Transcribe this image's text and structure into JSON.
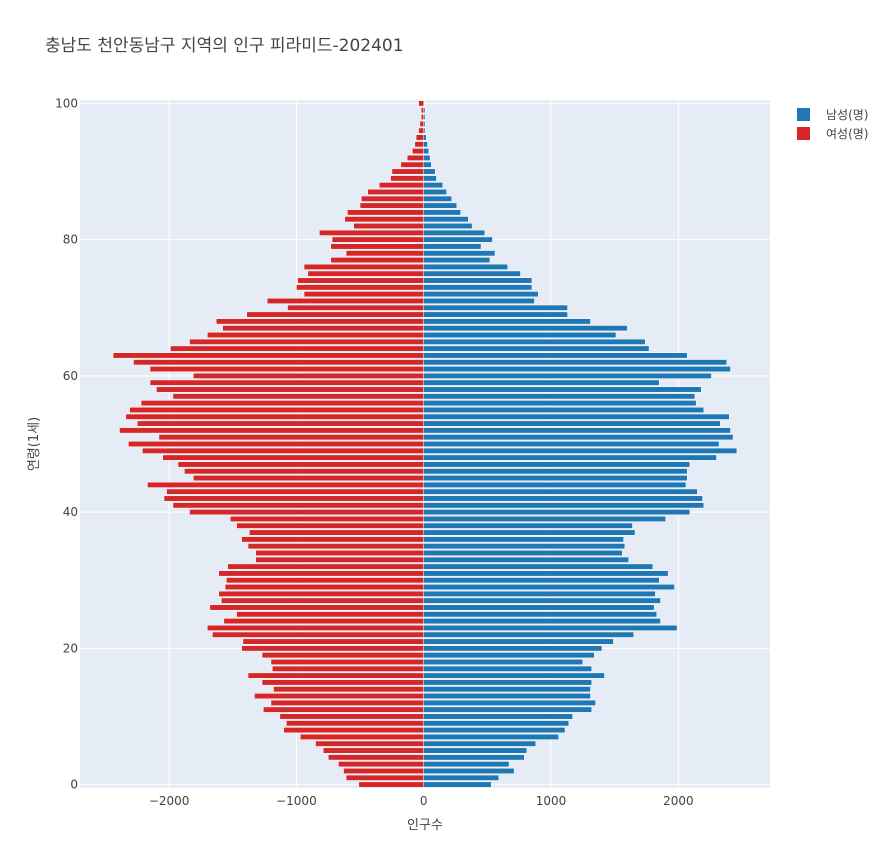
{
  "chart_data": {
    "type": "bar",
    "orientation": "horizontal",
    "barmode": "overlay",
    "title": "충남도 천안동남구 지역의 인구 피라미드-202401",
    "xlabel": "인구수",
    "ylabel": "연령(1세)",
    "xlim": [
      -2700,
      2720
    ],
    "ylim": [
      -0.5,
      100.5
    ],
    "xticks": [
      -2000,
      -1000,
      0,
      1000,
      2000
    ],
    "xtick_labels": [
      "−2000",
      "−1000",
      "0",
      "1000",
      "2000"
    ],
    "yticks": [
      0,
      20,
      40,
      60,
      80,
      100
    ],
    "ytick_labels": [
      "0",
      "20",
      "40",
      "60",
      "80",
      "100"
    ],
    "grid": true,
    "legend_position": "top-right",
    "background": "#e5ecf6",
    "series": [
      {
        "name": "남성(명)",
        "color": "#1f77b4",
        "ages": [
          0,
          1,
          2,
          3,
          4,
          5,
          6,
          7,
          8,
          9,
          10,
          11,
          12,
          13,
          14,
          15,
          16,
          17,
          18,
          19,
          20,
          21,
          22,
          23,
          24,
          25,
          26,
          27,
          28,
          29,
          30,
          31,
          32,
          33,
          34,
          35,
          36,
          37,
          38,
          39,
          40,
          41,
          42,
          43,
          44,
          45,
          46,
          47,
          48,
          49,
          50,
          51,
          52,
          53,
          54,
          55,
          56,
          57,
          58,
          59,
          60,
          61,
          62,
          63,
          64,
          65,
          66,
          67,
          68,
          69,
          70,
          71,
          72,
          73,
          74,
          75,
          76,
          77,
          78,
          79,
          80,
          81,
          82,
          83,
          84,
          85,
          86,
          87,
          88,
          89,
          90,
          91,
          92,
          93,
          94,
          95,
          96,
          97,
          98,
          99,
          100
        ],
        "values": [
          530,
          590,
          710,
          670,
          790,
          810,
          880,
          1060,
          1110,
          1140,
          1170,
          1320,
          1350,
          1310,
          1310,
          1320,
          1420,
          1320,
          1250,
          1340,
          1400,
          1490,
          1650,
          1990,
          1860,
          1830,
          1810,
          1860,
          1820,
          1970,
          1850,
          1920,
          1800,
          1610,
          1560,
          1580,
          1570,
          1660,
          1640,
          1900,
          2090,
          2200,
          2190,
          2150,
          2060,
          2070,
          2070,
          2090,
          2300,
          2460,
          2320,
          2430,
          2410,
          2330,
          2400,
          2200,
          2140,
          2130,
          2180,
          1850,
          2260,
          2410,
          2380,
          2070,
          1770,
          1740,
          1510,
          1600,
          1310,
          1130,
          1130,
          870,
          900,
          850,
          850,
          760,
          660,
          520,
          560,
          450,
          540,
          480,
          380,
          350,
          290,
          260,
          220,
          180,
          150,
          100,
          90,
          60,
          50,
          40,
          30,
          20,
          10,
          10,
          10,
          10,
          0
        ]
      },
      {
        "name": "여성(명)",
        "color": "#d62728",
        "ages": [
          0,
          1,
          2,
          3,
          4,
          5,
          6,
          7,
          8,
          9,
          10,
          11,
          12,
          13,
          14,
          15,
          16,
          17,
          18,
          19,
          20,
          21,
          22,
          23,
          24,
          25,
          26,
          27,
          28,
          29,
          30,
          31,
          32,
          33,
          34,
          35,
          36,
          37,
          38,
          39,
          40,
          41,
          42,
          43,
          44,
          45,
          46,
          47,
          48,
          49,
          50,
          51,
          52,
          53,
          54,
          55,
          56,
          57,
          58,
          59,
          60,
          61,
          62,
          63,
          64,
          65,
          66,
          67,
          68,
          69,
          70,
          71,
          72,
          73,
          74,
          75,
          76,
          77,
          78,
          79,
          80,
          81,
          82,
          83,
          84,
          85,
          86,
          87,
          88,
          89,
          90,
          91,
          92,
          93,
          94,
          95,
          96,
          97,
          98,
          99,
          100
        ],
        "values": [
          -510,
          -610,
          -630,
          -670,
          -750,
          -790,
          -850,
          -970,
          -1100,
          -1080,
          -1130,
          -1260,
          -1200,
          -1330,
          -1180,
          -1270,
          -1380,
          -1190,
          -1200,
          -1270,
          -1430,
          -1420,
          -1660,
          -1700,
          -1570,
          -1470,
          -1680,
          -1590,
          -1610,
          -1560,
          -1550,
          -1610,
          -1540,
          -1320,
          -1320,
          -1380,
          -1430,
          -1370,
          -1470,
          -1520,
          -1840,
          -1970,
          -2040,
          -2020,
          -2170,
          -1810,
          -1880,
          -1930,
          -2050,
          -2210,
          -2320,
          -2080,
          -2390,
          -2250,
          -2340,
          -2310,
          -2220,
          -1970,
          -2100,
          -2150,
          -1810,
          -2150,
          -2280,
          -2440,
          -1990,
          -1840,
          -1700,
          -1580,
          -1630,
          -1390,
          -1070,
          -1230,
          -940,
          -1000,
          -990,
          -910,
          -940,
          -730,
          -610,
          -730,
          -720,
          -820,
          -550,
          -620,
          -600,
          -500,
          -490,
          -440,
          -350,
          -260,
          -250,
          -180,
          -130,
          -90,
          -70,
          -60,
          -40,
          -30,
          -20,
          -20,
          -40
        ]
      }
    ]
  }
}
